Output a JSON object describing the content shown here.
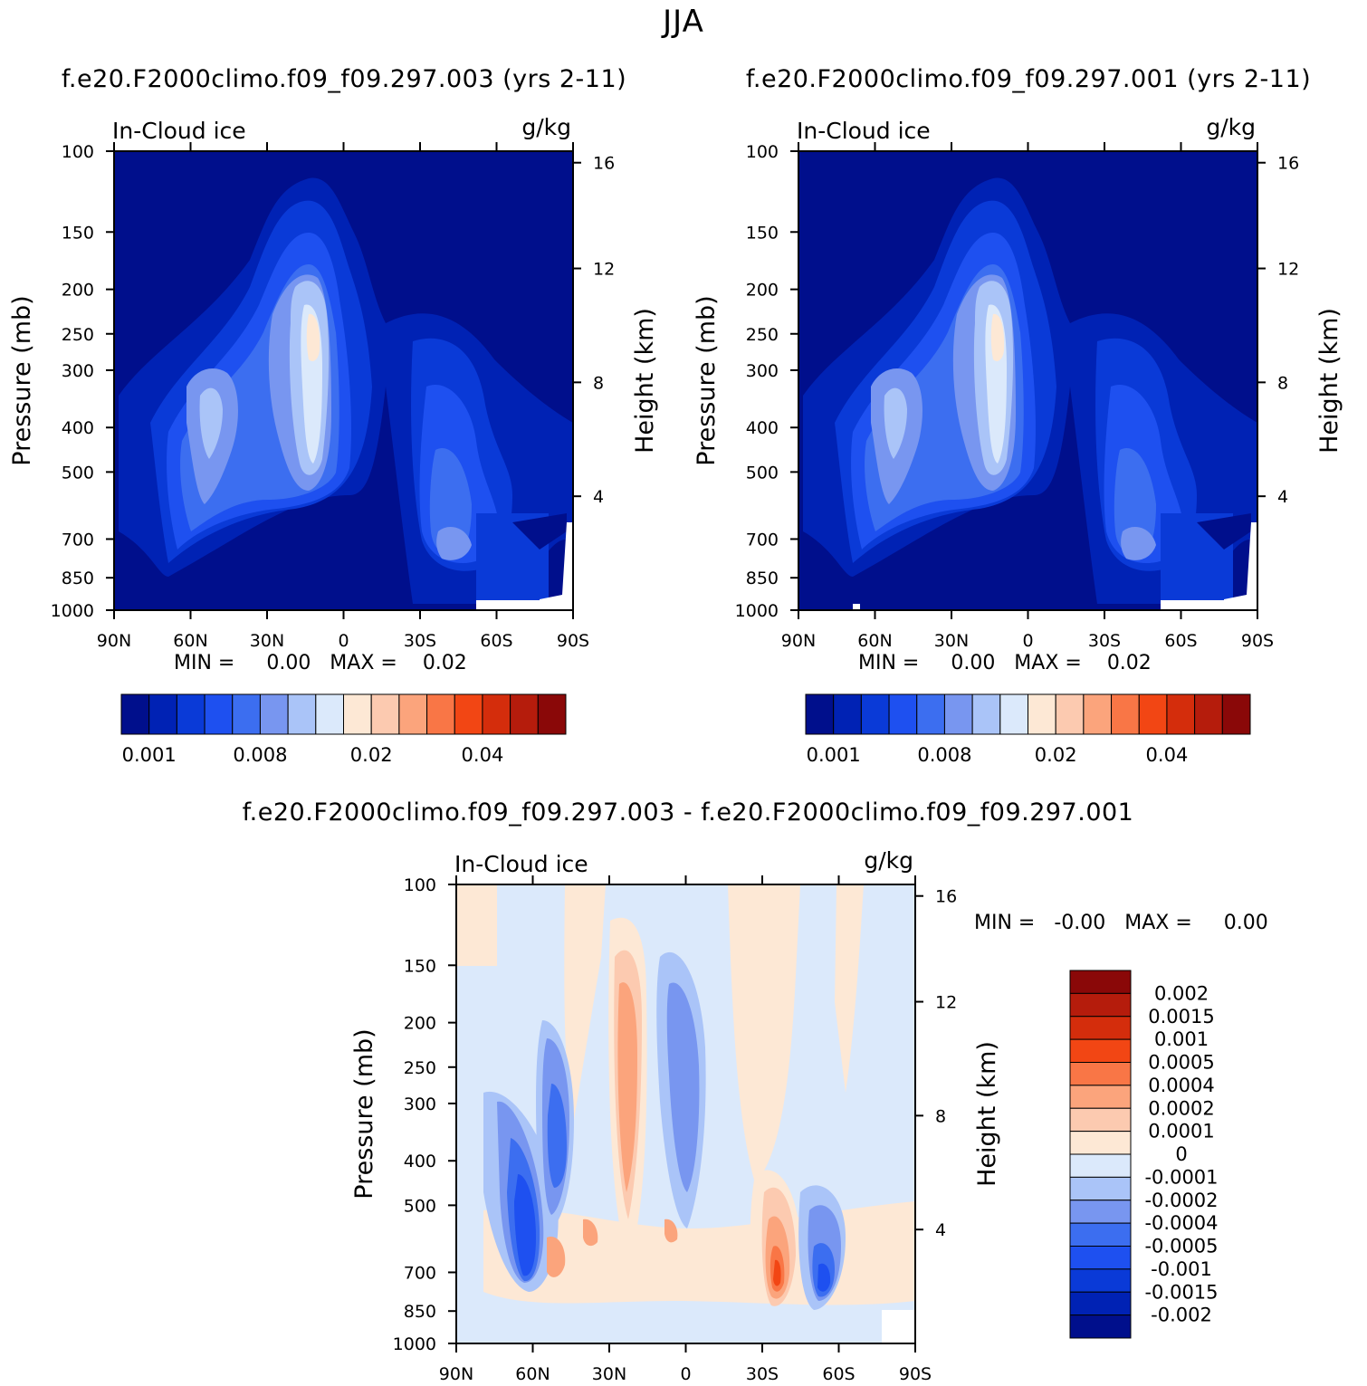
{
  "figure_title": "JJA",
  "panels": [
    {
      "id": "p1",
      "title": "f.e20.F2000climo.f09_f09.297.003 (yrs 2-11)",
      "variable": "In-Cloud ice",
      "units": "g/kg",
      "min_label": "MIN =",
      "min_value": "0.00",
      "max_label": "MAX =",
      "max_value": "0.02"
    },
    {
      "id": "p2",
      "title": "f.e20.F2000climo.f09_f09.297.001 (yrs 2-11)",
      "variable": "In-Cloud ice",
      "units": "g/kg",
      "min_label": "MIN =",
      "min_value": "0.00",
      "max_label": "MAX =",
      "max_value": "0.02"
    },
    {
      "id": "p3",
      "title": "f.e20.F2000climo.f09_f09.297.003 - f.e20.F2000climo.f09_f09.297.001",
      "variable": "In-Cloud ice",
      "units": "g/kg",
      "min_label": "MIN =",
      "min_value": "-0.00",
      "max_label": "MAX =",
      "max_value": "0.00"
    }
  ],
  "axes": {
    "ylabel": "Pressure (mb)",
    "y2label": "Height (km)",
    "pressure_ticks": [
      "100",
      "150",
      "200",
      "250",
      "300",
      "400",
      "500",
      "700",
      "850",
      "1000"
    ],
    "height_ticks": [
      "16",
      "12",
      "8",
      "4"
    ],
    "lat_ticks": [
      "90N",
      "60N",
      "30N",
      "0",
      "30S",
      "60S",
      "90S"
    ]
  },
  "colorbar_abs": {
    "labels": [
      "0.001",
      "0.008",
      "0.02",
      "0.04"
    ],
    "colors": [
      "#000f8c",
      "#0022b4",
      "#0a3ad7",
      "#1e50f0",
      "#3c6ef0",
      "#7896f0",
      "#aac4f8",
      "#dbe9fb",
      "#fde8d5",
      "#fccab0",
      "#fba47c",
      "#f97646",
      "#f24614",
      "#d42d0c",
      "#b51c0c",
      "#8a0808"
    ]
  },
  "colorbar_diff": {
    "labels": [
      "0.002",
      "0.0015",
      "0.001",
      "0.0005",
      "0.0004",
      "0.0002",
      "0.0001",
      "0",
      "-0.0001",
      "-0.0002",
      "-0.0004",
      "-0.0005",
      "-0.001",
      "-0.0015",
      "-0.002"
    ],
    "colors": [
      "#8a0808",
      "#b51c0c",
      "#d42d0c",
      "#f24614",
      "#f97646",
      "#fba47c",
      "#fccab0",
      "#fde8d5",
      "#dbe9fb",
      "#aac4f8",
      "#7896f0",
      "#3c6ef0",
      "#1e50f0",
      "#0a3ad7",
      "#0022b4",
      "#000f8c"
    ]
  },
  "chart_data": [
    {
      "type": "heatmap",
      "title": "f.e20.F2000climo.f09_f09.297.003 (yrs 2-11)",
      "subtitle": "In-Cloud ice",
      "units": "g/kg",
      "xlabel": "",
      "ylabel": "Pressure (mb)",
      "y2label": "Height (km)",
      "x_ticks": [
        "90N",
        "60N",
        "30N",
        "0",
        "30S",
        "60S",
        "90S"
      ],
      "y_ticks": [
        100,
        150,
        200,
        250,
        300,
        400,
        500,
        700,
        850,
        1000
      ],
      "y2_ticks": [
        16,
        12,
        8,
        4
      ],
      "ylim": [
        1000,
        100
      ],
      "min": 0.0,
      "max": 0.02,
      "colorbar_ticks": [
        0.001,
        0.008,
        0.02,
        0.04
      ]
    },
    {
      "type": "heatmap",
      "title": "f.e20.F2000climo.f09_f09.297.001 (yrs 2-11)",
      "subtitle": "In-Cloud ice",
      "units": "g/kg",
      "xlabel": "",
      "ylabel": "Pressure (mb)",
      "y2label": "Height (km)",
      "x_ticks": [
        "90N",
        "60N",
        "30N",
        "0",
        "30S",
        "60S",
        "90S"
      ],
      "y_ticks": [
        100,
        150,
        200,
        250,
        300,
        400,
        500,
        700,
        850,
        1000
      ],
      "y2_ticks": [
        16,
        12,
        8,
        4
      ],
      "ylim": [
        1000,
        100
      ],
      "min": 0.0,
      "max": 0.02,
      "colorbar_ticks": [
        0.001,
        0.008,
        0.02,
        0.04
      ]
    },
    {
      "type": "heatmap",
      "title": "f.e20.F2000climo.f09_f09.297.003 - f.e20.F2000climo.f09_f09.297.001",
      "subtitle": "In-Cloud ice",
      "units": "g/kg",
      "xlabel": "",
      "ylabel": "Pressure (mb)",
      "y2label": "Height (km)",
      "x_ticks": [
        "90N",
        "60N",
        "30N",
        "0",
        "30S",
        "60S",
        "90S"
      ],
      "y_ticks": [
        100,
        150,
        200,
        250,
        300,
        400,
        500,
        700,
        850,
        1000
      ],
      "y2_ticks": [
        16,
        12,
        8,
        4
      ],
      "ylim": [
        1000,
        100
      ],
      "min": -0.0,
      "max": 0.0,
      "colorbar_ticks": [
        0.002,
        0.0015,
        0.001,
        0.0005,
        0.0004,
        0.0002,
        0.0001,
        0,
        -0.0001,
        -0.0002,
        -0.0004,
        -0.0005,
        -0.001,
        -0.0015,
        -0.002
      ]
    }
  ]
}
